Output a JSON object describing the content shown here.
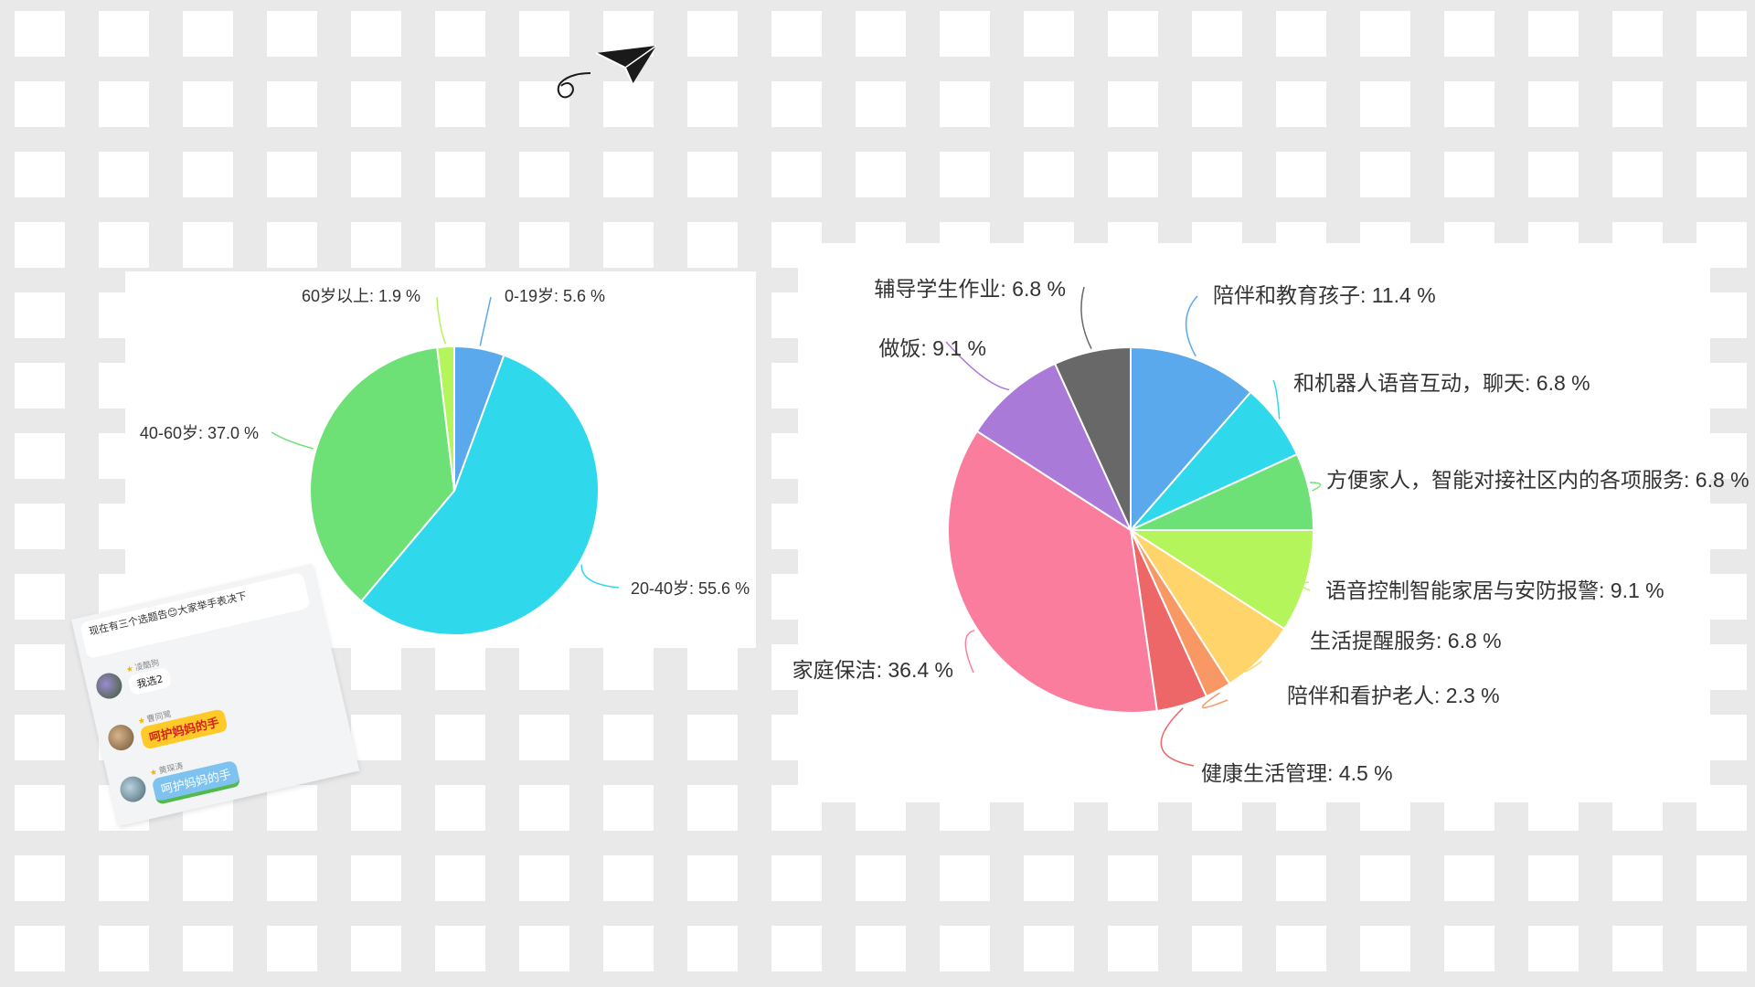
{
  "chart_data": [
    {
      "type": "pie",
      "start_angle_deg": 0,
      "direction": "clockwise",
      "slices": [
        {
          "label": "0-19岁",
          "value": 5.6,
          "color": "#5aa9ed",
          "text": "0-19岁: 5.6 %"
        },
        {
          "label": "20-40岁",
          "value": 55.6,
          "color": "#2fd8ea",
          "text": "20-40岁: 55.6 %"
        },
        {
          "label": "40-60岁",
          "value": 37.0,
          "color": "#6ee176",
          "text": "40-60岁: 37.0 %"
        },
        {
          "label": "60岁以上",
          "value": 1.9,
          "color": "#b3f55a",
          "text": "60岁以上: 1.9 %"
        }
      ]
    },
    {
      "type": "pie",
      "start_angle_deg": 0,
      "direction": "clockwise",
      "slices": [
        {
          "label": "陪伴和教育孩子",
          "value": 11.4,
          "color": "#5aa9ed",
          "text": "陪伴和教育孩子: 11.4 %"
        },
        {
          "label": "和机器人语音互动，聊天",
          "value": 6.8,
          "color": "#2fd8ea",
          "text": "和机器人语音互动，聊天: 6.8 %"
        },
        {
          "label": "方便家人，智能对接社区内的各项服务",
          "value": 6.8,
          "color": "#6ee176",
          "text": "方便家人，智能对接社区内的各项服务: 6.8 %"
        },
        {
          "label": "语音控制智能家居与安防报警",
          "value": 9.1,
          "color": "#b3f55a",
          "text": "语音控制智能家居与安防报警: 9.1 %"
        },
        {
          "label": "生活提醒服务",
          "value": 6.8,
          "color": "#ffd46a",
          "text": "生活提醒服务: 6.8 %"
        },
        {
          "label": "陪伴和看护老人",
          "value": 2.3,
          "color": "#f79865",
          "text": "陪伴和看护老人: 2.3 %"
        },
        {
          "label": "健康生活管理",
          "value": 4.5,
          "color": "#ee6768",
          "text": "健康生活管理: 4.5 %"
        },
        {
          "label": "家庭保洁",
          "value": 36.4,
          "color": "#fa7d9d",
          "text": "家庭保洁: 36.4 %"
        },
        {
          "label": "做饭",
          "value": 9.1,
          "color": "#aa7ad9",
          "text": "做饭: 9.1 %"
        },
        {
          "label": "辅导学生作业",
          "value": 6.8,
          "color": "#686868",
          "text": "辅导学生作业: 6.8 %"
        }
      ]
    }
  ],
  "chat": {
    "top_message": "现在有三个选题告😊大家举手表决下",
    "messages": [
      {
        "name": "凌酷狗",
        "text": "我选2"
      },
      {
        "name": "曹同鹭",
        "text": "呵护妈妈的手"
      },
      {
        "name": "黄琛涛",
        "text": "呵护妈妈的手"
      }
    ]
  }
}
